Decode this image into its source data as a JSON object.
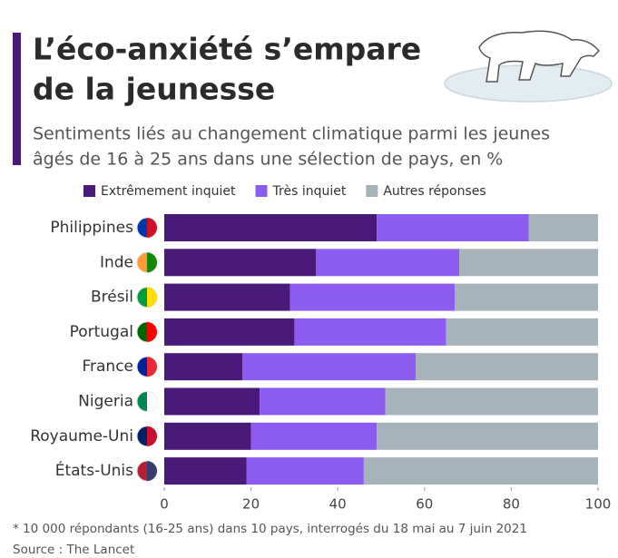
{
  "chart_data": {
    "type": "stacked-bar-horizontal",
    "title": [
      "L’éco-anxiété s’empare",
      "de la jeunesse"
    ],
    "subtitle": [
      "Sentiments liés au changement climatique parmi les jeunes",
      "âgés de 16 à 25 ans dans une sélection de pays, en %"
    ],
    "categories": [
      "Philippines",
      "Inde",
      "Brésil",
      "Portugal",
      "France",
      "Nigeria",
      "Royaume-Uni",
      "États-Unis"
    ],
    "series": [
      {
        "name": "Extrêmement inquiet",
        "color": "#4a1a78",
        "values": [
          49,
          35,
          29,
          30,
          18,
          22,
          20,
          19
        ]
      },
      {
        "name": "Très inquiet",
        "color": "#8c5cf0",
        "values": [
          35,
          33,
          38,
          35,
          40,
          29,
          29,
          27
        ]
      },
      {
        "name": "Autres réponses",
        "color": "#a7b3ba",
        "values": [
          16,
          32,
          33,
          35,
          42,
          49,
          51,
          54
        ]
      }
    ],
    "xlim": [
      0,
      100
    ],
    "xticks": [
      0,
      20,
      40,
      60,
      80,
      100
    ],
    "footnote": "* 10 000 répondants (16-25 ans) dans 10 pays, interrogés du 18 mai au 7 juin 2021",
    "source": "Source : The Lancet"
  }
}
